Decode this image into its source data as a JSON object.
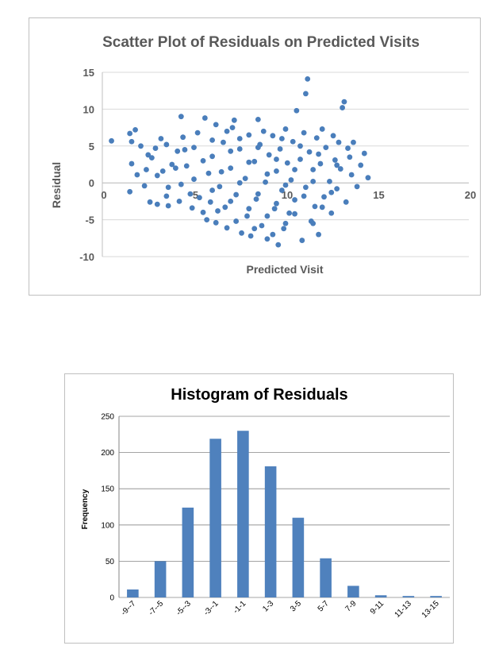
{
  "colors": {
    "marker": "#4a7ebb",
    "bar": "#4f81bd",
    "grid": "#d9d9d9",
    "axis": "#bfbfbf"
  },
  "chart_data": [
    {
      "type": "scatter",
      "title": "Scatter Plot of Residuals on Predicted Visits",
      "xlabel": "Predicted Visit",
      "ylabel": "Residual",
      "xlim": [
        0,
        20
      ],
      "ylim": [
        -10,
        15
      ],
      "x_ticks": [
        "0",
        "5",
        "10",
        "15",
        "20"
      ],
      "y_ticks": [
        "15",
        "10",
        "5",
        "0",
        "-5",
        "-10"
      ],
      "grid": "horizontal",
      "legend": "none",
      "points": [
        [
          0.5,
          5.7
        ],
        [
          1.5,
          -1.2
        ],
        [
          1.5,
          6.7
        ],
        [
          1.8,
          7.2
        ],
        [
          1.6,
          2.6
        ],
        [
          1.9,
          1.1
        ],
        [
          1.6,
          5.6
        ],
        [
          2.1,
          5.0
        ],
        [
          2.4,
          1.8
        ],
        [
          2.3,
          -0.4
        ],
        [
          2.7,
          3.4
        ],
        [
          2.9,
          4.7
        ],
        [
          2.6,
          -2.6
        ],
        [
          3.0,
          -2.9
        ],
        [
          3.3,
          1.6
        ],
        [
          3.2,
          6.0
        ],
        [
          3.5,
          5.2
        ],
        [
          3.6,
          -0.6
        ],
        [
          3.6,
          -3.1
        ],
        [
          3.8,
          2.5
        ],
        [
          4.1,
          4.3
        ],
        [
          4.3,
          -0.2
        ],
        [
          4.3,
          9.0
        ],
        [
          4.4,
          6.2
        ],
        [
          4.6,
          2.3
        ],
        [
          4.8,
          -1.5
        ],
        [
          4.9,
          -3.4
        ],
        [
          5.0,
          4.8
        ],
        [
          5.2,
          6.8
        ],
        [
          5.6,
          8.8
        ],
        [
          5.5,
          -4.0
        ],
        [
          5.7,
          -5.0
        ],
        [
          5.8,
          1.3
        ],
        [
          5.9,
          -2.6
        ],
        [
          6.0,
          3.6
        ],
        [
          6.2,
          7.9
        ],
        [
          6.2,
          -5.4
        ],
        [
          6.4,
          -0.5
        ],
        [
          6.6,
          5.5
        ],
        [
          6.7,
          -3.3
        ],
        [
          6.8,
          -6.1
        ],
        [
          7.0,
          2.0
        ],
        [
          7.1,
          7.5
        ],
        [
          7.2,
          8.5
        ],
        [
          7.3,
          -1.6
        ],
        [
          7.5,
          4.6
        ],
        [
          7.6,
          -6.8
        ],
        [
          7.8,
          0.6
        ],
        [
          7.9,
          -4.5
        ],
        [
          8.0,
          6.5
        ],
        [
          8.1,
          -7.2
        ],
        [
          8.3,
          2.9
        ],
        [
          8.4,
          -2.2
        ],
        [
          8.5,
          8.6
        ],
        [
          8.6,
          5.2
        ],
        [
          8.7,
          -5.8
        ],
        [
          8.9,
          0.1
        ],
        [
          9.0,
          -7.6
        ],
        [
          9.1,
          3.8
        ],
        [
          9.3,
          6.4
        ],
        [
          9.4,
          -3.5
        ],
        [
          9.5,
          1.6
        ],
        [
          9.6,
          -8.4
        ],
        [
          9.7,
          4.6
        ],
        [
          9.8,
          -1.0
        ],
        [
          9.9,
          -6.2
        ],
        [
          10.0,
          7.3
        ],
        [
          10.1,
          2.7
        ],
        [
          10.2,
          -4.1
        ],
        [
          10.3,
          0.4
        ],
        [
          10.4,
          5.6
        ],
        [
          10.5,
          -2.3
        ],
        [
          10.6,
          9.8
        ],
        [
          10.8,
          3.2
        ],
        [
          10.9,
          -7.8
        ],
        [
          11.0,
          6.8
        ],
        [
          11.1,
          -0.6
        ],
        [
          11.2,
          14.1
        ],
        [
          11.1,
          12.1
        ],
        [
          11.3,
          4.2
        ],
        [
          11.4,
          -5.2
        ],
        [
          11.5,
          1.8
        ],
        [
          11.6,
          -3.2
        ],
        [
          11.7,
          6.1
        ],
        [
          11.8,
          -7.0
        ],
        [
          11.9,
          2.6
        ],
        [
          12.0,
          7.3
        ],
        [
          12.1,
          -1.9
        ],
        [
          12.2,
          4.8
        ],
        [
          12.4,
          0.2
        ],
        [
          12.5,
          -4.1
        ],
        [
          12.6,
          6.4
        ],
        [
          12.7,
          3.1
        ],
        [
          12.8,
          -0.8
        ],
        [
          12.9,
          5.5
        ],
        [
          13.0,
          1.9
        ],
        [
          13.1,
          10.2
        ],
        [
          13.2,
          11.0
        ],
        [
          13.3,
          -2.6
        ],
        [
          13.4,
          4.7
        ],
        [
          13.6,
          1.1
        ],
        [
          13.7,
          5.5
        ],
        [
          13.9,
          -0.5
        ],
        [
          14.1,
          2.4
        ],
        [
          14.3,
          4.0
        ],
        [
          14.5,
          0.7
        ],
        [
          4.0,
          2.0
        ],
        [
          5.0,
          0.5
        ],
        [
          6.0,
          -1.0
        ],
        [
          7.0,
          -2.5
        ],
        [
          8.0,
          -3.5
        ],
        [
          9.0,
          -4.5
        ],
        [
          10.0,
          -5.5
        ],
        [
          4.5,
          4.5
        ],
        [
          5.5,
          3.0
        ],
        [
          6.5,
          1.5
        ],
        [
          7.5,
          0.0
        ],
        [
          8.5,
          -1.5
        ],
        [
          9.5,
          -2.8
        ],
        [
          10.5,
          -4.2
        ],
        [
          11.5,
          -5.5
        ],
        [
          6.0,
          5.8
        ],
        [
          7.0,
          4.3
        ],
        [
          8.0,
          2.8
        ],
        [
          9.0,
          1.2
        ],
        [
          10.0,
          -0.3
        ],
        [
          11.0,
          -1.8
        ],
        [
          12.0,
          -3.3
        ],
        [
          7.5,
          6.0
        ],
        [
          8.5,
          4.8
        ],
        [
          9.5,
          3.2
        ],
        [
          10.5,
          1.8
        ],
        [
          11.5,
          0.2
        ],
        [
          12.5,
          -1.3
        ],
        [
          3.0,
          1.0
        ],
        [
          3.5,
          -1.8
        ],
        [
          2.5,
          3.8
        ],
        [
          5.3,
          -2.0
        ],
        [
          6.3,
          -3.8
        ],
        [
          7.3,
          -5.2
        ],
        [
          8.3,
          -6.2
        ],
        [
          9.3,
          -7.0
        ],
        [
          4.2,
          -2.5
        ],
        [
          12.8,
          2.4
        ],
        [
          13.5,
          3.5
        ],
        [
          11.8,
          3.9
        ],
        [
          10.8,
          5.0
        ],
        [
          9.8,
          6.0
        ],
        [
          8.8,
          7.0
        ],
        [
          6.8,
          7.0
        ]
      ]
    },
    {
      "type": "bar",
      "title": "Histogram of Residuals",
      "xlabel": "",
      "ylabel": "Frequency",
      "ylim": [
        0,
        250
      ],
      "y_ticks": [
        "250",
        "200",
        "150",
        "100",
        "50",
        "0"
      ],
      "categories": [
        "-9--7",
        "-7--5",
        "-5--3",
        "-3--1",
        "-1-1",
        "1-3",
        "3-5",
        "5-7",
        "7-9",
        "9-11",
        "11-13",
        "13-15"
      ],
      "values": [
        11,
        50,
        124,
        219,
        230,
        181,
        110,
        54,
        16,
        3,
        2,
        2
      ],
      "grid": "horizontal",
      "legend": "none"
    }
  ]
}
